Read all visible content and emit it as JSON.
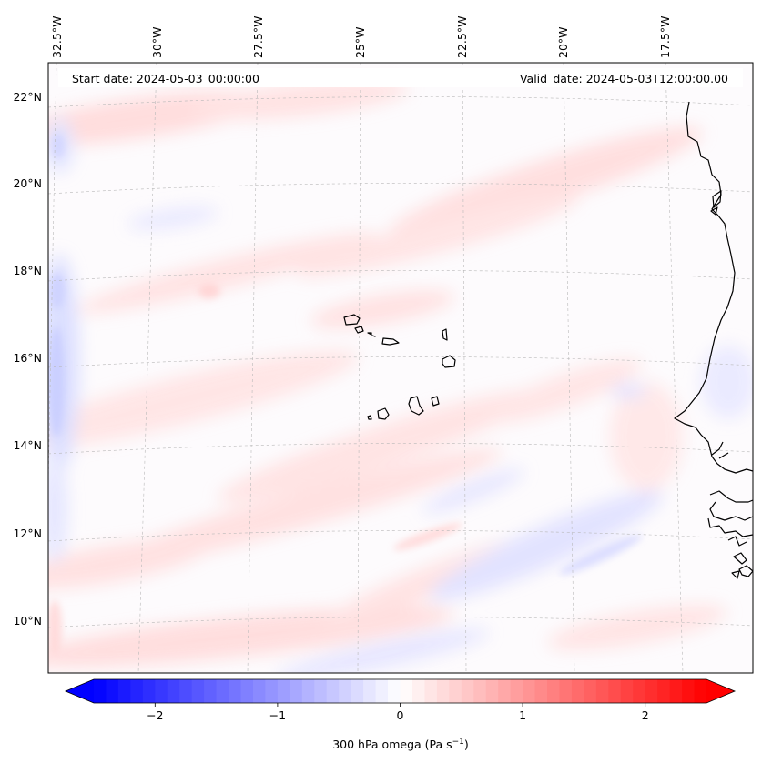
{
  "header": {
    "start_date": "Start date: 2024-05-03_00:00:00",
    "valid_date": "Valid_date: 2024-05-03T12:00:00.00"
  },
  "map": {
    "projection": "lambert-conformal",
    "longitude_labels": [
      "32.5°W",
      "30°W",
      "27.5°W",
      "25°W",
      "22.5°W",
      "20°W",
      "17.5°W"
    ],
    "latitude_labels": [
      "22°N",
      "20°N",
      "18°N",
      "16°N",
      "14°N",
      "12°N",
      "10°N"
    ],
    "coastline_color": "#000000",
    "gridline_color": "#b0b0b0"
  },
  "colorbar": {
    "label": "300 hPa omega (Pa s",
    "label_exponent": "−1",
    "label_close": ")",
    "range": [
      -2.5,
      2.5
    ],
    "ticks": [
      "−2",
      "−1",
      "0",
      "1",
      "2"
    ],
    "tick_values": [
      -2,
      -1,
      0,
      1,
      2
    ],
    "colormap": "bwr",
    "negative_color": "#0000ff",
    "neutral_color": "#ffffff",
    "positive_color": "#ff0000"
  }
}
